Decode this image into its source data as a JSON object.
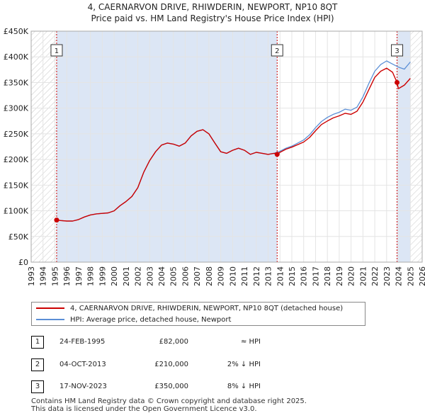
{
  "title_line1": "4, CAERNARVON DRIVE, RHIWDERIN, NEWPORT, NP10 8QT",
  "title_line2": "Price paid vs. HM Land Registry's House Price Index (HPI)",
  "colors": {
    "price_line": "#cc0000",
    "hpi_line": "#5b8fd6",
    "shade": "#dce6f5",
    "marker": "#cc0000"
  },
  "legend": {
    "price_label": "4, CAERNARVON DRIVE, RHIWDERIN, NEWPORT, NP10 8QT (detached house)",
    "hpi_label": "HPI: Average price, detached house, Newport"
  },
  "sales": [
    {
      "num": "1",
      "date": "24-FEB-1995",
      "price": "£82,000",
      "hpi": "≈ HPI"
    },
    {
      "num": "2",
      "date": "04-OCT-2013",
      "price": "£210,000",
      "hpi": "2% ↓ HPI"
    },
    {
      "num": "3",
      "date": "17-NOV-2023",
      "price": "£350,000",
      "hpi": "8% ↓ HPI"
    }
  ],
  "footer_line1": "Contains HM Land Registry data © Crown copyright and database right 2025.",
  "footer_line2": "This data is licensed under the Open Government Licence v3.0.",
  "chart_data": {
    "type": "line",
    "xlim": [
      1993,
      2026
    ],
    "ylim": [
      0,
      450000
    ],
    "x_ticks": [
      1993,
      1994,
      1995,
      1996,
      1997,
      1998,
      1999,
      2000,
      2001,
      2002,
      2003,
      2004,
      2005,
      2006,
      2007,
      2008,
      2009,
      2010,
      2011,
      2012,
      2013,
      2014,
      2015,
      2016,
      2017,
      2018,
      2019,
      2020,
      2021,
      2022,
      2023,
      2024,
      2025,
      2026
    ],
    "y_ticks": [
      {
        "value": 0,
        "label": "£0"
      },
      {
        "value": 50000,
        "label": "£50K"
      },
      {
        "value": 100000,
        "label": "£100K"
      },
      {
        "value": 150000,
        "label": "£150K"
      },
      {
        "value": 200000,
        "label": "£200K"
      },
      {
        "value": 250000,
        "label": "£250K"
      },
      {
        "value": 300000,
        "label": "£300K"
      },
      {
        "value": 350000,
        "label": "£350K"
      },
      {
        "value": 400000,
        "label": "£400K"
      },
      {
        "value": 450000,
        "label": "£450K"
      }
    ],
    "hatched_ranges": [
      [
        1993,
        1995.15
      ],
      [
        2025.0,
        2026
      ]
    ],
    "shaded_ranges": [
      [
        1995.15,
        2013.76
      ],
      [
        2023.88,
        2025.0
      ]
    ],
    "sale_points": [
      {
        "label": "1",
        "x": 1995.15,
        "y": 82000
      },
      {
        "label": "2",
        "x": 2013.76,
        "y": 210000
      },
      {
        "label": "3",
        "x": 2023.88,
        "y": 350000
      }
    ],
    "series": [
      {
        "name": "HPI: Average price, detached house, Newport",
        "x": [
          1995.0,
          1995.5,
          1996.0,
          1996.5,
          1997.0,
          1997.5,
          1998.0,
          1998.5,
          1999.0,
          1999.5,
          2000.0,
          2000.5,
          2001.0,
          2001.5,
          2002.0,
          2002.5,
          2003.0,
          2003.5,
          2004.0,
          2004.5,
          2005.0,
          2005.5,
          2006.0,
          2006.5,
          2007.0,
          2007.5,
          2008.0,
          2008.5,
          2009.0,
          2009.5,
          2010.0,
          2010.5,
          2011.0,
          2011.5,
          2012.0,
          2012.5,
          2013.0,
          2013.5,
          2014.0,
          2014.5,
          2015.0,
          2015.5,
          2016.0,
          2016.5,
          2017.0,
          2017.5,
          2018.0,
          2018.5,
          2019.0,
          2019.5,
          2020.0,
          2020.5,
          2021.0,
          2021.5,
          2022.0,
          2022.5,
          2023.0,
          2023.5,
          2024.0,
          2024.5,
          2025.0
        ],
        "y": [
          82000,
          81000,
          80000,
          80000,
          83000,
          88000,
          92000,
          94000,
          95000,
          96000,
          100000,
          110000,
          118000,
          128000,
          145000,
          175000,
          198000,
          215000,
          228000,
          232000,
          230000,
          226000,
          232000,
          246000,
          255000,
          258000,
          250000,
          232000,
          215000,
          212000,
          218000,
          222000,
          218000,
          210000,
          214000,
          212000,
          210000,
          212000,
          216000,
          222000,
          226000,
          232000,
          238000,
          248000,
          262000,
          274000,
          282000,
          288000,
          292000,
          298000,
          296000,
          302000,
          322000,
          348000,
          372000,
          385000,
          392000,
          386000,
          380000,
          376000,
          390000
        ]
      },
      {
        "name": "4, CAERNARVON DRIVE, RHIWDERIN, NEWPORT, NP10 8QT (detached house)",
        "x": [
          1995.15,
          1995.5,
          1996.0,
          1996.5,
          1997.0,
          1997.5,
          1998.0,
          1998.5,
          1999.0,
          1999.5,
          2000.0,
          2000.5,
          2001.0,
          2001.5,
          2002.0,
          2002.5,
          2003.0,
          2003.5,
          2004.0,
          2004.5,
          2005.0,
          2005.5,
          2006.0,
          2006.5,
          2007.0,
          2007.5,
          2008.0,
          2008.5,
          2009.0,
          2009.5,
          2010.0,
          2010.5,
          2011.0,
          2011.5,
          2012.0,
          2012.5,
          2013.0,
          2013.5,
          2013.76,
          2014.0,
          2014.5,
          2015.0,
          2015.5,
          2016.0,
          2016.5,
          2017.0,
          2017.5,
          2018.0,
          2018.5,
          2019.0,
          2019.5,
          2020.0,
          2020.5,
          2021.0,
          2021.5,
          2022.0,
          2022.5,
          2023.0,
          2023.5,
          2023.88,
          2024.0,
          2024.5,
          2025.0
        ],
        "y": [
          82000,
          81000,
          80000,
          80000,
          83000,
          88000,
          92000,
          94000,
          95000,
          96000,
          100000,
          110000,
          118000,
          128000,
          145000,
          175000,
          198000,
          215000,
          228000,
          232000,
          230000,
          226000,
          232000,
          246000,
          255000,
          258000,
          250000,
          232000,
          215000,
          212000,
          218000,
          222000,
          218000,
          210000,
          214000,
          212000,
          210000,
          212000,
          210000,
          214000,
          220000,
          224000,
          229000,
          234000,
          243000,
          256000,
          268000,
          275000,
          281000,
          285000,
          290000,
          288000,
          294000,
          312000,
          336000,
          360000,
          372000,
          378000,
          370000,
          350000,
          338000,
          345000,
          358000
        ]
      }
    ]
  }
}
